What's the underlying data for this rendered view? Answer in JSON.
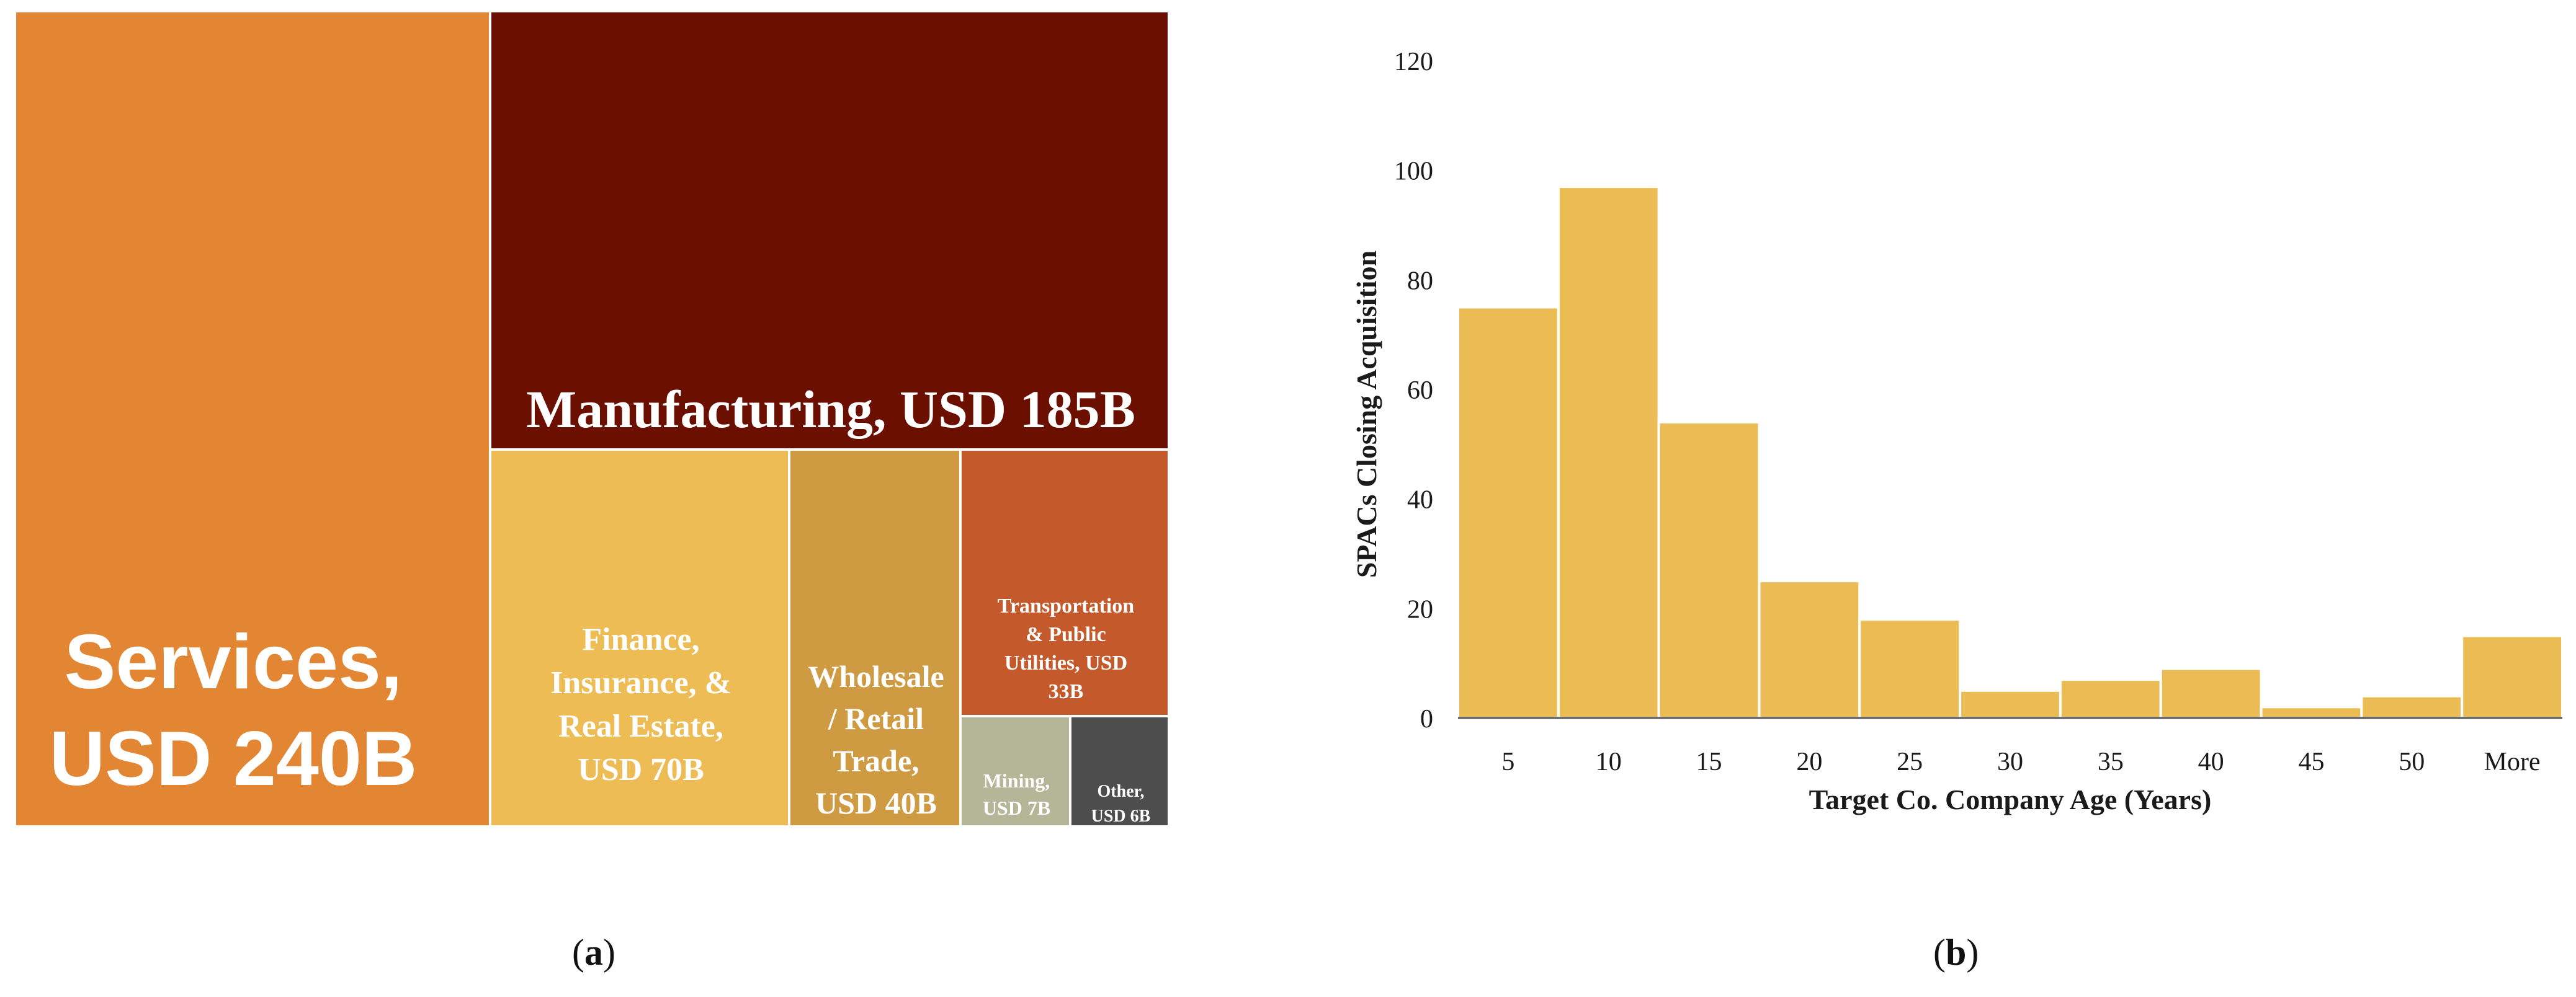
{
  "panel_a": {
    "label_open": "(",
    "label_letter": "a",
    "label_close": ")",
    "tiles": [
      {
        "id": "services",
        "label": "Services,\nUSD 240B",
        "value_usd_b": 240,
        "color": "#e38633"
      },
      {
        "id": "manufacturing",
        "label": "Manufacturing, USD 185B",
        "value_usd_b": 185,
        "color": "#6b0f01"
      },
      {
        "id": "finance",
        "label": "Finance,\nInsurance, &\nReal Estate,\nUSD 70B",
        "value_usd_b": 70,
        "color": "#edbc54"
      },
      {
        "id": "wholesale",
        "label": "Wholesale\n/ Retail\nTrade,\nUSD 40B",
        "value_usd_b": 40,
        "color": "#ce9a42"
      },
      {
        "id": "transportation",
        "label": "Transportation\n& Public\nUtilities, USD\n33B",
        "value_usd_b": 33,
        "color": "#c4592b"
      },
      {
        "id": "mining",
        "label": "Mining,\nUSD 7B",
        "value_usd_b": 7,
        "color": "#b5b598"
      },
      {
        "id": "other",
        "label": "Other,\nUSD 6B",
        "value_usd_b": 6,
        "color": "#4d4d4d"
      }
    ]
  },
  "panel_b": {
    "label_open": "(",
    "label_letter": "b",
    "label_close": ")"
  },
  "chart_data": [
    {
      "type": "treemap",
      "categories": [
        "Services",
        "Manufacturing",
        "Finance, Insurance, & Real Estate",
        "Wholesale / Retail Trade",
        "Transportation & Public Utilities",
        "Mining",
        "Other"
      ],
      "values": [
        240,
        185,
        70,
        40,
        33,
        7,
        6
      ],
      "unit": "USD B"
    },
    {
      "type": "bar",
      "categories": [
        "5",
        "10",
        "15",
        "20",
        "25",
        "30",
        "35",
        "40",
        "45",
        "50",
        "More"
      ],
      "values": [
        75,
        97,
        54,
        25,
        18,
        5,
        7,
        9,
        2,
        4,
        15
      ],
      "xlabel": "Target Co. Company Age (Years)",
      "ylabel": "SPACs Closing Acquisition",
      "ylim": [
        0,
        120
      ],
      "yticks": [
        0,
        20,
        40,
        60,
        80,
        100,
        120
      ],
      "bar_color": "#ecbc54",
      "grid": false
    }
  ]
}
